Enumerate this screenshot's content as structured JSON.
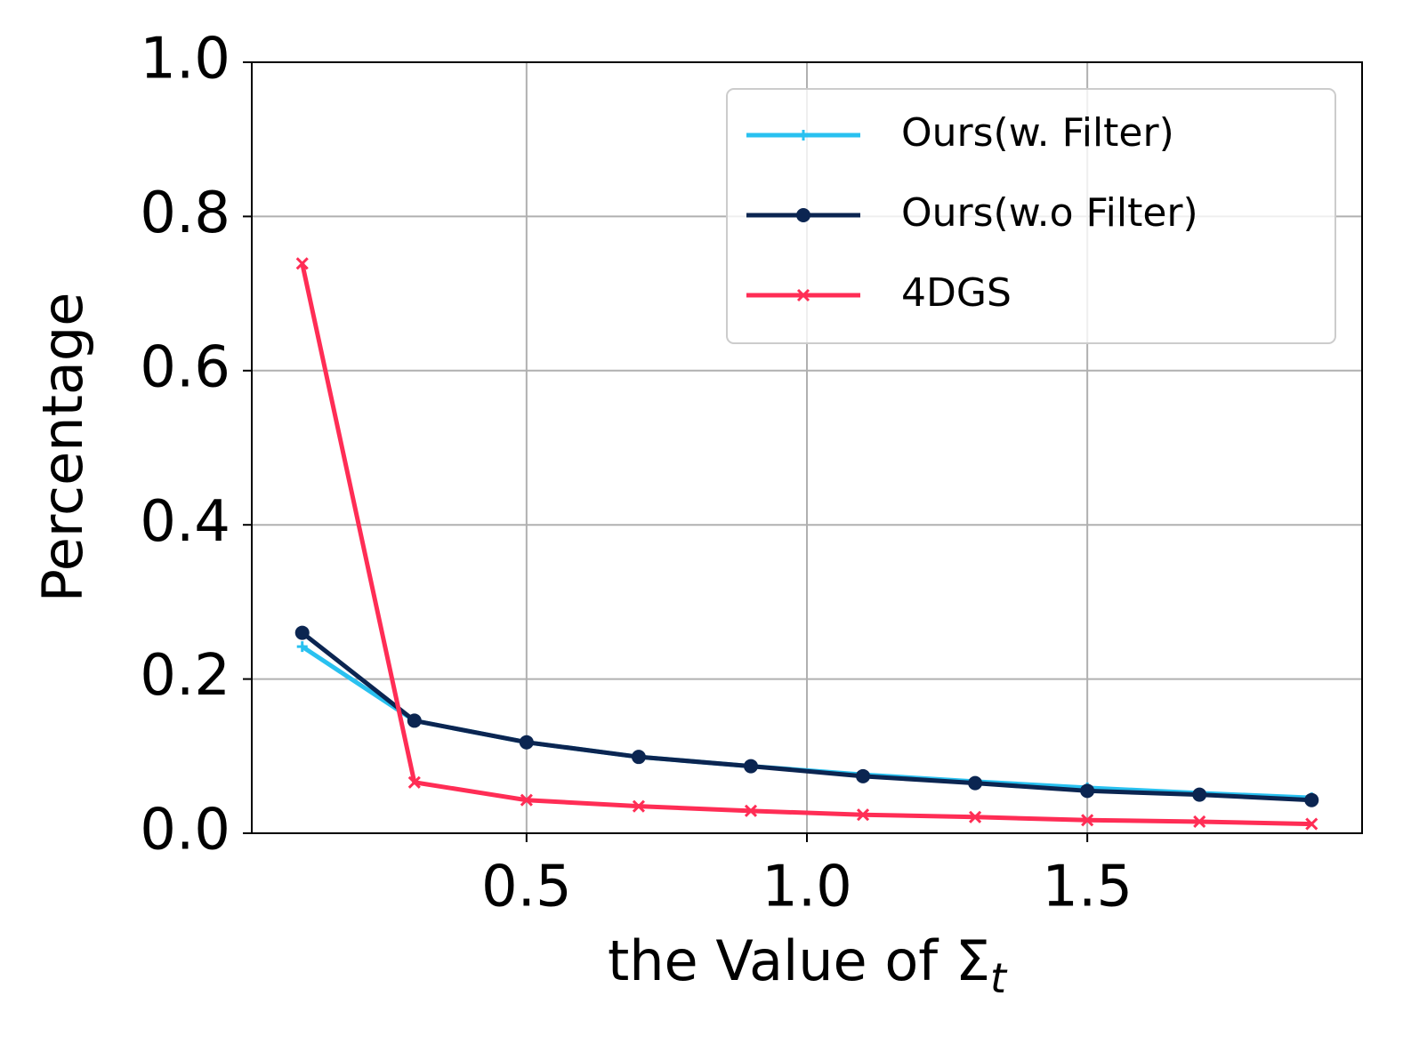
{
  "chart_data": {
    "type": "line",
    "xlabel": "the Value of Σ",
    "xlabel_subscript": "t",
    "ylabel": "Percentage",
    "x": [
      0.1,
      0.3,
      0.5,
      0.7,
      0.9,
      1.1,
      1.3,
      1.5,
      1.7,
      1.9
    ],
    "series": [
      {
        "name": "Ours(w. Filter)",
        "color": "#29c1f0",
        "marker": "plus",
        "values": [
          0.242,
          0.146,
          0.118,
          0.099,
          0.087,
          0.076,
          0.067,
          0.059,
          0.052,
          0.046
        ]
      },
      {
        "name": "Ours(w.o Filter)",
        "color": "#0b2551",
        "marker": "circle",
        "values": [
          0.26,
          0.146,
          0.118,
          0.099,
          0.087,
          0.074,
          0.065,
          0.055,
          0.05,
          0.043
        ]
      },
      {
        "name": "4DGS",
        "color": "#ff2d55",
        "marker": "x",
        "values": [
          0.739,
          0.066,
          0.043,
          0.035,
          0.029,
          0.024,
          0.021,
          0.017,
          0.015,
          0.012
        ]
      }
    ],
    "xlim": [
      0.01,
      1.99
    ],
    "xticks": [
      0.5,
      {
        "value": 1,
        "label": "1.0"
      },
      1.5
    ],
    "ylim": [
      0,
      1
    ],
    "yticks": [
      {
        "value": 0,
        "label": "0.0"
      },
      0.2,
      0.4,
      0.6,
      0.8,
      {
        "value": 1,
        "label": "1.0"
      }
    ],
    "grid": true,
    "legend": "upper right"
  }
}
